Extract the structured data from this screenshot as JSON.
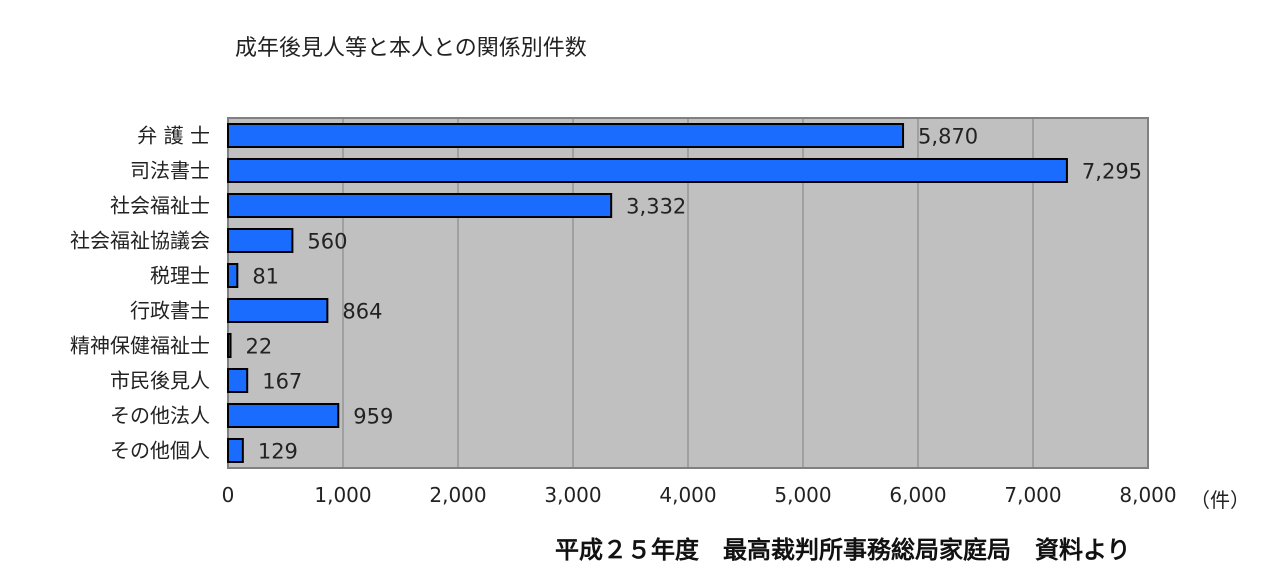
{
  "chart_data": {
    "type": "bar",
    "orientation": "horizontal",
    "title": "成年後見人等と本人との関係別件数",
    "categories": [
      "弁 護 士",
      "司法書士",
      "社会福祉士",
      "社会福祉協議会",
      "税理士",
      "行政書士",
      "精神保健福祉士",
      "市民後見人",
      "その他法人",
      "その他個人"
    ],
    "values": [
      5870,
      7295,
      3332,
      560,
      81,
      864,
      22,
      167,
      959,
      129
    ],
    "value_labels": [
      "5,870",
      "7,295",
      "3,332",
      "560",
      "81",
      "864",
      "22",
      "167",
      "959",
      "129"
    ],
    "xlim": [
      0,
      8000
    ],
    "xticks": [
      0,
      1000,
      2000,
      3000,
      4000,
      5000,
      6000,
      7000,
      8000
    ],
    "xtick_labels": [
      "0",
      "1,000",
      "2,000",
      "3,000",
      "4,000",
      "5,000",
      "6,000",
      "7,000",
      "8,000"
    ],
    "x_unit": "（件）",
    "grid": true,
    "colors": {
      "bar": "#1a6cff",
      "bar_border": "#000000",
      "plot_bg": "#c0c0c0",
      "grid": "#808080"
    }
  },
  "source_note": "平成２５年度　最高裁判所事務総局家庭局　資料より"
}
